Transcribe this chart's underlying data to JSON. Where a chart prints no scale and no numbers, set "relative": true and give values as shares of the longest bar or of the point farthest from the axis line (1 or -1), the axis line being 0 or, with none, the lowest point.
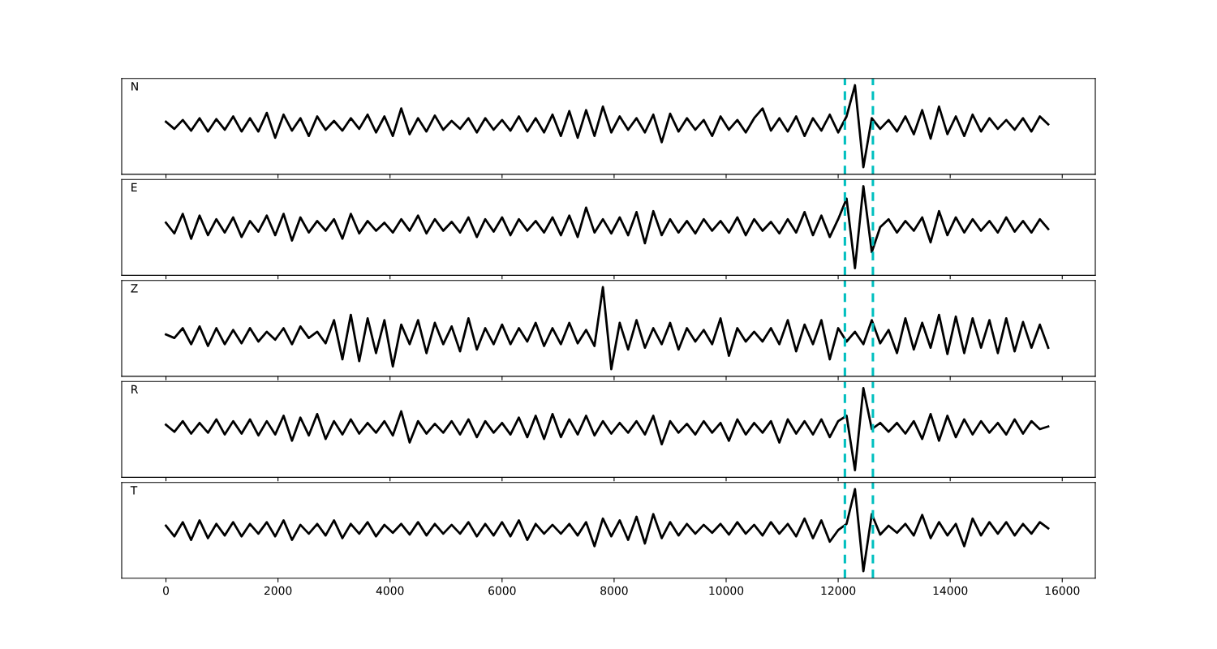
{
  "chart_data": [
    {
      "type": "line",
      "annotations": [
        "N"
      ],
      "relative": true,
      "xlim": [
        -790,
        16590
      ],
      "xticks": [
        0,
        2000,
        4000,
        6000,
        8000,
        10000,
        12000,
        14000,
        16000
      ],
      "tick_labels": false,
      "x": [
        0,
        150,
        300,
        450,
        600,
        750,
        900,
        1050,
        1200,
        1350,
        1500,
        1650,
        1800,
        1950,
        2100,
        2250,
        2400,
        2550,
        2700,
        2850,
        3000,
        3150,
        3300,
        3450,
        3600,
        3750,
        3900,
        4050,
        4200,
        4350,
        4500,
        4650,
        4800,
        4950,
        5100,
        5250,
        5400,
        5550,
        5700,
        5850,
        6000,
        6150,
        6300,
        6450,
        6600,
        6750,
        6900,
        7050,
        7200,
        7350,
        7500,
        7650,
        7800,
        7950,
        8100,
        8250,
        8400,
        8550,
        8700,
        8850,
        9000,
        9150,
        9300,
        9450,
        9600,
        9750,
        9900,
        10050,
        10200,
        10350,
        10500,
        10650,
        10800,
        10950,
        11100,
        11250,
        11400,
        11550,
        11700,
        11850,
        12000,
        12150,
        12300,
        12450,
        12600,
        12750,
        12900,
        13050,
        13200,
        13350,
        13500,
        13650,
        13800,
        13950,
        14100,
        14250,
        14400,
        14550,
        14700,
        14850,
        15000,
        15150,
        15300,
        15450,
        15600,
        15750
      ],
      "series": [
        {
          "color": "#000000",
          "values": [
            0.59,
            0.51,
            0.61,
            0.49,
            0.63,
            0.48,
            0.62,
            0.5,
            0.65,
            0.48,
            0.63,
            0.48,
            0.69,
            0.41,
            0.67,
            0.49,
            0.63,
            0.43,
            0.65,
            0.5,
            0.6,
            0.49,
            0.63,
            0.51,
            0.67,
            0.47,
            0.65,
            0.43,
            0.74,
            0.45,
            0.63,
            0.48,
            0.66,
            0.5,
            0.6,
            0.51,
            0.63,
            0.47,
            0.63,
            0.5,
            0.61,
            0.49,
            0.65,
            0.48,
            0.63,
            0.47,
            0.67,
            0.43,
            0.71,
            0.41,
            0.72,
            0.43,
            0.76,
            0.47,
            0.65,
            0.5,
            0.63,
            0.47,
            0.67,
            0.36,
            0.68,
            0.48,
            0.63,
            0.5,
            0.61,
            0.43,
            0.65,
            0.5,
            0.61,
            0.47,
            0.63,
            0.74,
            0.49,
            0.63,
            0.48,
            0.65,
            0.43,
            0.63,
            0.49,
            0.67,
            0.47,
            0.65,
            1.0,
            0.08,
            0.63,
            0.51,
            0.61,
            0.48,
            0.65,
            0.45,
            0.72,
            0.4,
            0.76,
            0.45,
            0.65,
            0.43,
            0.67,
            0.48,
            0.63,
            0.51,
            0.61,
            0.5,
            0.63,
            0.48,
            0.65,
            0.56
          ]
        }
      ],
      "ref_lines": [
        {
          "axis": "x",
          "value": 12120,
          "color": "#00bfbf",
          "line_style": "dashed"
        },
        {
          "axis": "x",
          "value": 12620,
          "color": "#00bfbf",
          "line_style": "dashed"
        }
      ]
    },
    {
      "type": "line",
      "annotations": [
        "E"
      ],
      "relative": true,
      "xlim": [
        -790,
        16590
      ],
      "xticks": [
        0,
        2000,
        4000,
        6000,
        8000,
        10000,
        12000,
        14000,
        16000
      ],
      "tick_labels": false,
      "x": [
        0,
        150,
        300,
        450,
        600,
        750,
        900,
        1050,
        1200,
        1350,
        1500,
        1650,
        1800,
        1950,
        2100,
        2250,
        2400,
        2550,
        2700,
        2850,
        3000,
        3150,
        3300,
        3450,
        3600,
        3750,
        3900,
        4050,
        4200,
        4350,
        4500,
        4650,
        4800,
        4950,
        5100,
        5250,
        5400,
        5550,
        5700,
        5850,
        6000,
        6150,
        6300,
        6450,
        6600,
        6750,
        6900,
        7050,
        7200,
        7350,
        7500,
        7650,
        7800,
        7950,
        8100,
        8250,
        8400,
        8550,
        8700,
        8850,
        9000,
        9150,
        9300,
        9450,
        9600,
        9750,
        9900,
        10050,
        10200,
        10350,
        10500,
        10650,
        10800,
        10950,
        11100,
        11250,
        11400,
        11550,
        11700,
        11850,
        12000,
        12150,
        12300,
        12450,
        12600,
        12750,
        12900,
        13050,
        13200,
        13350,
        13500,
        13650,
        13800,
        13950,
        14100,
        14250,
        14400,
        14550,
        14700,
        14850,
        15000,
        15150,
        15300,
        15450,
        15600,
        15750
      ],
      "series": [
        {
          "color": "#000000",
          "values": [
            0.59,
            0.47,
            0.69,
            0.41,
            0.67,
            0.45,
            0.63,
            0.48,
            0.65,
            0.43,
            0.61,
            0.49,
            0.67,
            0.45,
            0.69,
            0.39,
            0.65,
            0.48,
            0.61,
            0.5,
            0.63,
            0.41,
            0.69,
            0.47,
            0.61,
            0.5,
            0.59,
            0.48,
            0.63,
            0.5,
            0.67,
            0.47,
            0.63,
            0.5,
            0.6,
            0.48,
            0.65,
            0.43,
            0.63,
            0.49,
            0.65,
            0.45,
            0.63,
            0.5,
            0.61,
            0.48,
            0.65,
            0.45,
            0.67,
            0.43,
            0.76,
            0.48,
            0.63,
            0.47,
            0.65,
            0.45,
            0.71,
            0.36,
            0.72,
            0.45,
            0.63,
            0.48,
            0.61,
            0.47,
            0.63,
            0.5,
            0.61,
            0.48,
            0.65,
            0.45,
            0.63,
            0.5,
            0.6,
            0.47,
            0.63,
            0.48,
            0.71,
            0.45,
            0.67,
            0.43,
            0.63,
            0.86,
            0.08,
            1.0,
            0.26,
            0.54,
            0.63,
            0.48,
            0.61,
            0.5,
            0.65,
            0.37,
            0.72,
            0.45,
            0.65,
            0.48,
            0.63,
            0.5,
            0.61,
            0.48,
            0.65,
            0.49,
            0.61,
            0.48,
            0.63,
            0.52
          ]
        }
      ],
      "ref_lines": [
        {
          "axis": "x",
          "value": 12120,
          "color": "#00bfbf",
          "line_style": "dashed"
        },
        {
          "axis": "x",
          "value": 12620,
          "color": "#00bfbf",
          "line_style": "dashed"
        }
      ]
    },
    {
      "type": "line",
      "annotations": [
        "Z"
      ],
      "relative": true,
      "xlim": [
        -790,
        16590
      ],
      "xticks": [
        0,
        2000,
        4000,
        6000,
        8000,
        10000,
        12000,
        14000,
        16000
      ],
      "tick_labels": false,
      "x": [
        0,
        150,
        300,
        450,
        600,
        750,
        900,
        1050,
        1200,
        1350,
        1500,
        1650,
        1800,
        1950,
        2100,
        2250,
        2400,
        2550,
        2700,
        2850,
        3000,
        3150,
        3300,
        3450,
        3600,
        3750,
        3900,
        4050,
        4200,
        4350,
        4500,
        4650,
        4800,
        4950,
        5100,
        5250,
        5400,
        5550,
        5700,
        5850,
        6000,
        6150,
        6300,
        6450,
        6600,
        6750,
        6900,
        7050,
        7200,
        7350,
        7500,
        7650,
        7800,
        7950,
        8100,
        8250,
        8400,
        8550,
        8700,
        8850,
        9000,
        9150,
        9300,
        9450,
        9600,
        9750,
        9900,
        10050,
        10200,
        10350,
        10500,
        10650,
        10800,
        10950,
        11100,
        11250,
        11400,
        11550,
        11700,
        11850,
        12000,
        12150,
        12300,
        12450,
        12600,
        12750,
        12900,
        13050,
        13200,
        13350,
        13500,
        13650,
        13800,
        13950,
        14100,
        14250,
        14400,
        14550,
        14700,
        14850,
        15000,
        15150,
        15300,
        15450,
        15600,
        15750
      ],
      "series": [
        {
          "color": "#000000",
          "values": [
            0.47,
            0.43,
            0.54,
            0.36,
            0.56,
            0.34,
            0.54,
            0.36,
            0.52,
            0.37,
            0.54,
            0.39,
            0.5,
            0.41,
            0.54,
            0.36,
            0.56,
            0.43,
            0.5,
            0.37,
            0.63,
            0.19,
            0.69,
            0.17,
            0.65,
            0.26,
            0.63,
            0.11,
            0.58,
            0.36,
            0.63,
            0.26,
            0.6,
            0.36,
            0.56,
            0.28,
            0.65,
            0.3,
            0.54,
            0.36,
            0.58,
            0.36,
            0.54,
            0.39,
            0.6,
            0.34,
            0.54,
            0.36,
            0.6,
            0.37,
            0.52,
            0.34,
            1.0,
            0.08,
            0.6,
            0.3,
            0.63,
            0.32,
            0.54,
            0.36,
            0.6,
            0.3,
            0.54,
            0.39,
            0.52,
            0.36,
            0.65,
            0.23,
            0.54,
            0.39,
            0.5,
            0.39,
            0.54,
            0.36,
            0.63,
            0.28,
            0.58,
            0.36,
            0.63,
            0.19,
            0.54,
            0.39,
            0.5,
            0.36,
            0.63,
            0.37,
            0.52,
            0.26,
            0.65,
            0.3,
            0.6,
            0.32,
            0.69,
            0.25,
            0.67,
            0.26,
            0.65,
            0.32,
            0.63,
            0.26,
            0.65,
            0.28,
            0.61,
            0.32,
            0.58,
            0.32
          ]
        }
      ],
      "ref_lines": [
        {
          "axis": "x",
          "value": 12120,
          "color": "#00bfbf",
          "line_style": "dashed"
        },
        {
          "axis": "x",
          "value": 12620,
          "color": "#00bfbf",
          "line_style": "dashed"
        }
      ]
    },
    {
      "type": "line",
      "annotations": [
        "R"
      ],
      "relative": true,
      "xlim": [
        -790,
        16590
      ],
      "xticks": [
        0,
        2000,
        4000,
        6000,
        8000,
        10000,
        12000,
        14000,
        16000
      ],
      "tick_labels": false,
      "x": [
        0,
        150,
        300,
        450,
        600,
        750,
        900,
        1050,
        1200,
        1350,
        1500,
        1650,
        1800,
        1950,
        2100,
        2250,
        2400,
        2550,
        2700,
        2850,
        3000,
        3150,
        3300,
        3450,
        3600,
        3750,
        3900,
        4050,
        4200,
        4350,
        4500,
        4650,
        4800,
        4950,
        5100,
        5250,
        5400,
        5550,
        5700,
        5850,
        6000,
        6150,
        6300,
        6450,
        6600,
        6750,
        6900,
        7050,
        7200,
        7350,
        7500,
        7650,
        7800,
        7950,
        8100,
        8250,
        8400,
        8550,
        8700,
        8850,
        9000,
        9150,
        9300,
        9450,
        9600,
        9750,
        9900,
        10050,
        10200,
        10350,
        10500,
        10650,
        10800,
        10950,
        11100,
        11250,
        11400,
        11550,
        11700,
        11850,
        12000,
        12150,
        12300,
        12450,
        12600,
        12750,
        12900,
        13050,
        13200,
        13350,
        13500,
        13650,
        13800,
        13950,
        14100,
        14250,
        14400,
        14550,
        14700,
        14850,
        15000,
        15150,
        15300,
        15450,
        15600,
        15750
      ],
      "series": [
        {
          "color": "#000000",
          "values": [
            0.59,
            0.51,
            0.63,
            0.49,
            0.61,
            0.5,
            0.65,
            0.48,
            0.63,
            0.49,
            0.65,
            0.47,
            0.63,
            0.48,
            0.69,
            0.41,
            0.67,
            0.47,
            0.71,
            0.43,
            0.63,
            0.48,
            0.65,
            0.49,
            0.61,
            0.5,
            0.63,
            0.47,
            0.74,
            0.39,
            0.63,
            0.49,
            0.6,
            0.5,
            0.63,
            0.48,
            0.65,
            0.45,
            0.63,
            0.5,
            0.61,
            0.48,
            0.67,
            0.45,
            0.69,
            0.43,
            0.71,
            0.45,
            0.65,
            0.48,
            0.69,
            0.47,
            0.63,
            0.49,
            0.61,
            0.5,
            0.63,
            0.48,
            0.69,
            0.37,
            0.63,
            0.5,
            0.6,
            0.48,
            0.63,
            0.5,
            0.61,
            0.41,
            0.65,
            0.48,
            0.61,
            0.5,
            0.63,
            0.39,
            0.65,
            0.49,
            0.63,
            0.48,
            0.65,
            0.45,
            0.63,
            0.69,
            0.08,
            1.0,
            0.54,
            0.61,
            0.51,
            0.61,
            0.49,
            0.63,
            0.43,
            0.71,
            0.41,
            0.69,
            0.45,
            0.65,
            0.48,
            0.63,
            0.5,
            0.61,
            0.48,
            0.65,
            0.49,
            0.63,
            0.54,
            0.57
          ]
        }
      ],
      "ref_lines": [
        {
          "axis": "x",
          "value": 12120,
          "color": "#00bfbf",
          "line_style": "dashed"
        },
        {
          "axis": "x",
          "value": 12620,
          "color": "#00bfbf",
          "line_style": "dashed"
        }
      ]
    },
    {
      "type": "line",
      "annotations": [
        "T"
      ],
      "relative": true,
      "xlim": [
        -790,
        16590
      ],
      "xticks": [
        0,
        2000,
        4000,
        6000,
        8000,
        10000,
        12000,
        14000,
        16000
      ],
      "tick_labels": "x",
      "x": [
        0,
        150,
        300,
        450,
        600,
        750,
        900,
        1050,
        1200,
        1350,
        1500,
        1650,
        1800,
        1950,
        2100,
        2250,
        2400,
        2550,
        2700,
        2850,
        3000,
        3150,
        3300,
        3450,
        3600,
        3750,
        3900,
        4050,
        4200,
        4350,
        4500,
        4650,
        4800,
        4950,
        5100,
        5250,
        5400,
        5550,
        5700,
        5850,
        6000,
        6150,
        6300,
        6450,
        6600,
        6750,
        6900,
        7050,
        7200,
        7350,
        7500,
        7650,
        7800,
        7950,
        8100,
        8250,
        8400,
        8550,
        8700,
        8850,
        9000,
        9150,
        9300,
        9450,
        9600,
        9750,
        9900,
        10050,
        10200,
        10350,
        10500,
        10650,
        10800,
        10950,
        11100,
        11250,
        11400,
        11550,
        11700,
        11850,
        12000,
        12150,
        12300,
        12450,
        12600,
        12750,
        12900,
        13050,
        13200,
        13350,
        13500,
        13650,
        13800,
        13950,
        14100,
        14250,
        14400,
        14550,
        14700,
        14850,
        15000,
        15150,
        15300,
        15450,
        15600,
        15750
      ],
      "series": [
        {
          "color": "#000000",
          "values": [
            0.59,
            0.47,
            0.63,
            0.43,
            0.65,
            0.45,
            0.61,
            0.48,
            0.63,
            0.47,
            0.61,
            0.5,
            0.63,
            0.47,
            0.65,
            0.43,
            0.6,
            0.5,
            0.61,
            0.48,
            0.65,
            0.45,
            0.61,
            0.5,
            0.63,
            0.47,
            0.6,
            0.51,
            0.61,
            0.49,
            0.63,
            0.48,
            0.61,
            0.5,
            0.6,
            0.5,
            0.63,
            0.47,
            0.61,
            0.48,
            0.63,
            0.47,
            0.65,
            0.43,
            0.61,
            0.5,
            0.6,
            0.5,
            0.61,
            0.48,
            0.63,
            0.36,
            0.67,
            0.47,
            0.65,
            0.43,
            0.69,
            0.39,
            0.72,
            0.45,
            0.63,
            0.48,
            0.61,
            0.5,
            0.6,
            0.51,
            0.61,
            0.49,
            0.63,
            0.5,
            0.6,
            0.48,
            0.63,
            0.5,
            0.61,
            0.47,
            0.67,
            0.45,
            0.65,
            0.41,
            0.54,
            0.61,
            1.0,
            0.08,
            0.72,
            0.49,
            0.59,
            0.51,
            0.61,
            0.48,
            0.71,
            0.45,
            0.63,
            0.48,
            0.61,
            0.36,
            0.67,
            0.48,
            0.63,
            0.5,
            0.63,
            0.48,
            0.61,
            0.5,
            0.63,
            0.56
          ]
        }
      ],
      "ref_lines": [
        {
          "axis": "x",
          "value": 12120,
          "color": "#00bfbf",
          "line_style": "dashed"
        },
        {
          "axis": "x",
          "value": 12620,
          "color": "#00bfbf",
          "line_style": "dashed"
        }
      ]
    }
  ]
}
